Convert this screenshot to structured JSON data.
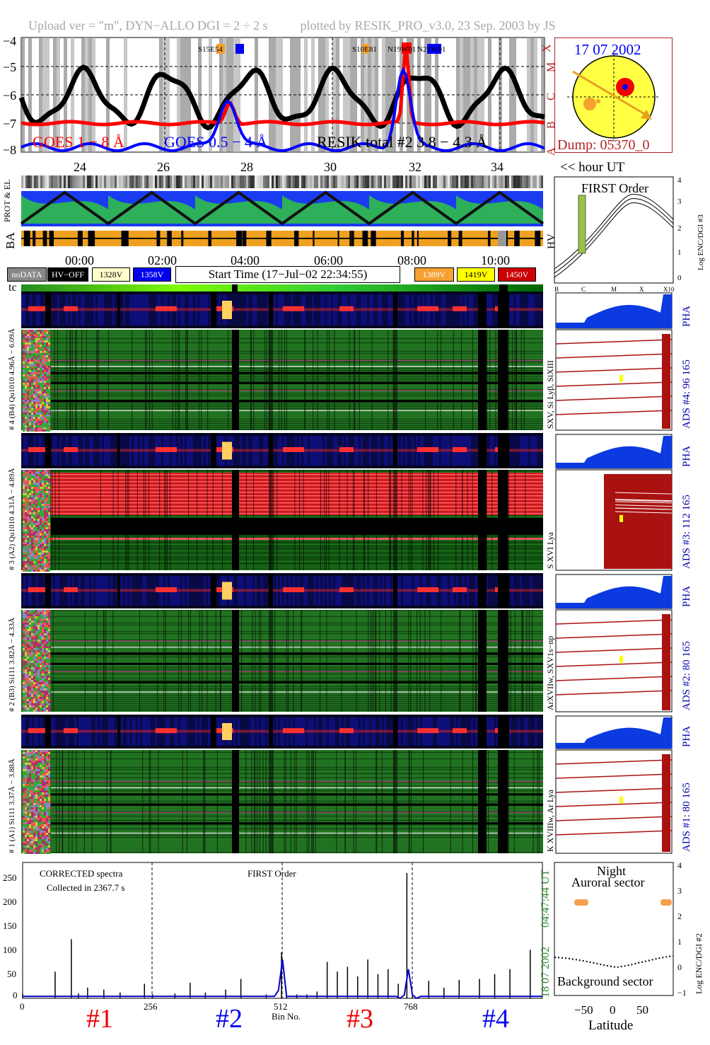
{
  "header": {
    "upload": "Upload ver = \"m\", DYN−ALLO DGI =   2 ÷   2 s",
    "plotted": "plotted by RESIK_PRO_v3.0, 23 Sep. 2003 by JS"
  },
  "goes_panel": {
    "yticks": [
      "−4",
      "−5",
      "−6",
      "−7",
      "−8"
    ],
    "class_letters": [
      "X",
      "M",
      "C",
      "B",
      "A"
    ],
    "label_goes18": "GOES 1 − 8 Å",
    "label_goes054": "GOES 0.5 − 4 Å",
    "label_resik": "RESIK total #2   3.8 − 4.3 Å",
    "flare_tags": [
      "S15E54",
      "S10E81",
      "N19W01",
      "N21W01"
    ],
    "hour_ticks": [
      "24",
      "26",
      "28",
      "30",
      "32",
      "34"
    ],
    "hour_label": "<< hour UT",
    "colors": {
      "goes18": "#ff0000",
      "goes054": "#0000ff",
      "resik": "#000000"
    }
  },
  "sun_panel": {
    "date": "17 07 2002",
    "dump": "Dump: 05370_0"
  },
  "orbit_panel": {
    "label_prot": "PROT & EL",
    "label_ba": "BA",
    "label_hv": "HV"
  },
  "time_axis": {
    "ticks": [
      "00:00",
      "02:00",
      "04:00",
      "06:00",
      "08:00",
      "10:00"
    ]
  },
  "status_legend": {
    "nodata": "noDATA",
    "hvoff": "HV−OFF",
    "v1328": "1328V",
    "v1358": "1358V",
    "start_time": "Start Time (17−Jul−02 22:34:55)",
    "v1389": "1389V",
    "v1419": "1419V",
    "v1450": "1450V"
  },
  "first_order_panel": {
    "title": "FIRST Order",
    "ylabel": "Log ENC/DGI #3",
    "yticks": [
      "4",
      "3",
      "2",
      "1",
      "0"
    ],
    "xticks": [
      "B",
      "C",
      "M",
      "X",
      "X10"
    ]
  },
  "tc_label": "tc",
  "channels": [
    {
      "pha_label": "# 4  (B4)  Qu1010  4.96Å − 6.09Å",
      "spec_label": "SXV, Si Lyβ, SiXIII",
      "ads_label": "ADS #4:    96 165",
      "pha": "PHA"
    },
    {
      "pha_label": "# 3  (A2)  Qu1010  4.31Å − 4.89Å",
      "spec_label": "S XVI Lya",
      "ads_label": "ADS #3:   112 165",
      "pha": "PHA"
    },
    {
      "pha_label": "# 2  (B3)  Si111  3.82Å − 4.33Å",
      "spec_label": "ArXVIIw, SXV1s−np",
      "ads_label": "ADS #2:    80 165",
      "pha": "PHA"
    },
    {
      "pha_label": "# 1  (A1)  Si111  3.37Å − 3.88Å",
      "spec_label": "K XVIIIw, Ar Lya",
      "ads_label": "ADS #1:    80 165",
      "pha": "PHA"
    }
  ],
  "spectrum_panel": {
    "title1": "CORRECTED spectra",
    "title2": "Collected in  2367.7 s",
    "title3": "FIRST Order",
    "yticks": [
      "250",
      "200",
      "150",
      "100",
      "50",
      "0"
    ],
    "xticks": [
      "0",
      "256",
      "512",
      "768"
    ],
    "xlabel": "Bin No.",
    "time_stamp": "04:47:44 UT",
    "date_stamp": "18 07 2002",
    "group_labels": [
      "#1",
      "#2",
      "#3",
      "#4"
    ]
  },
  "lat_panel": {
    "night": "Night",
    "auroral": "Auroral sector",
    "background": "Background sector",
    "xlabel": "Latitude",
    "xticks": [
      "−50",
      "0",
      "50"
    ],
    "yticks": [
      "4",
      "3",
      "2",
      "1",
      "0",
      "−1"
    ],
    "ylabel": "Log ENC/DGI #2"
  },
  "chart_data": {
    "type": "line",
    "title": "",
    "x": [
      0,
      64,
      96,
      110,
      128,
      160,
      192,
      240,
      256,
      300,
      330,
      360,
      400,
      430,
      480,
      510,
      520,
      540,
      560,
      580,
      600,
      620,
      640,
      660,
      680,
      700,
      720,
      740,
      757,
      768,
      800,
      830,
      860,
      900,
      930,
      960,
      1000
    ],
    "series": [
      {
        "values": [
          10,
          55,
          122,
          10,
          22,
          18,
          12,
          30,
          8,
          10,
          32,
          12,
          18,
          40,
          8,
          95,
          10,
          8,
          8,
          14,
          75,
          55,
          65,
          45,
          80,
          50,
          60,
          30,
          258,
          8,
          36,
          22,
          38,
          40,
          50,
          60,
          100
        ]
      }
    ],
    "xlabel": "Bin No.",
    "ylabel": "",
    "xlim": [
      0,
      1024
    ],
    "ylim": [
      0,
      280
    ]
  }
}
